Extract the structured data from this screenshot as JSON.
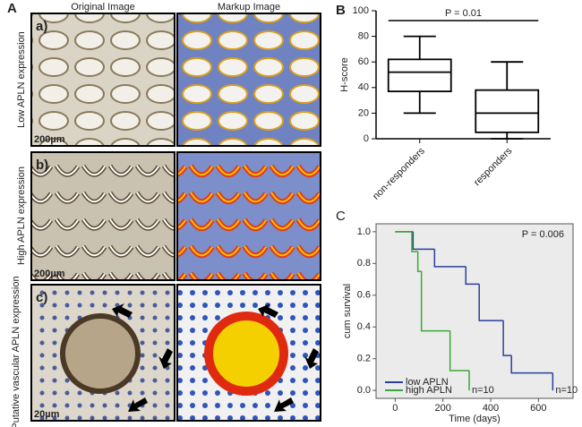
{
  "panel_a": {
    "label": "A",
    "col_headers": [
      "Original Image",
      "Markup Image"
    ],
    "rows": [
      {
        "letter": "a)",
        "label": "Low APLN expression",
        "scale": "200µm"
      },
      {
        "letter": "b)",
        "label": "High APLN expression",
        "scale": "200µm"
      },
      {
        "letter": "c)",
        "label": "Putative vascular APLN expression",
        "scale": "20µm"
      }
    ]
  },
  "chart_data": [
    {
      "type": "box",
      "panel": "B",
      "ylabel": "H-score",
      "annotation": "P = 0.01",
      "categories": [
        "non-responders",
        "responders"
      ],
      "min": [
        20,
        0
      ],
      "q1": [
        37,
        5
      ],
      "median": [
        52,
        20
      ],
      "q3": [
        62,
        38
      ],
      "max": [
        80,
        60
      ],
      "ylim": [
        0,
        100
      ],
      "yticks": [
        0,
        20,
        40,
        60,
        80,
        100
      ],
      "color": "#000000"
    },
    {
      "type": "step",
      "panel": "C",
      "xlabel": "Time (days)",
      "ylabel": "cum survival",
      "annotation": "P = 0.006",
      "xlim": [
        -80,
        745
      ],
      "xticks": [
        0,
        200,
        400,
        600
      ],
      "ylim": [
        -0.05,
        1.05
      ],
      "yticks": [
        {
          "value": 0,
          "label": "0.0"
        },
        0.2,
        0.4,
        0.6,
        0.8,
        {
          "value": 1,
          "label": "1.0"
        }
      ],
      "series": [
        {
          "name": "low APLN",
          "color": "#2b3f9a",
          "end_label": "n=10",
          "x": [
            0,
            75,
            165,
            296,
            352,
            453,
            487,
            660
          ],
          "values": [
            1,
            0.89,
            0.78,
            0.67,
            0.44,
            0.22,
            0.11,
            0
          ]
        },
        {
          "name": "high APLN",
          "color": "#3aa935",
          "end_label": "n=10",
          "x": [
            0,
            70,
            95,
            110,
            230,
            310
          ],
          "values": [
            1,
            0.875,
            0.75,
            0.375,
            0.125,
            0
          ]
        }
      ]
    }
  ]
}
